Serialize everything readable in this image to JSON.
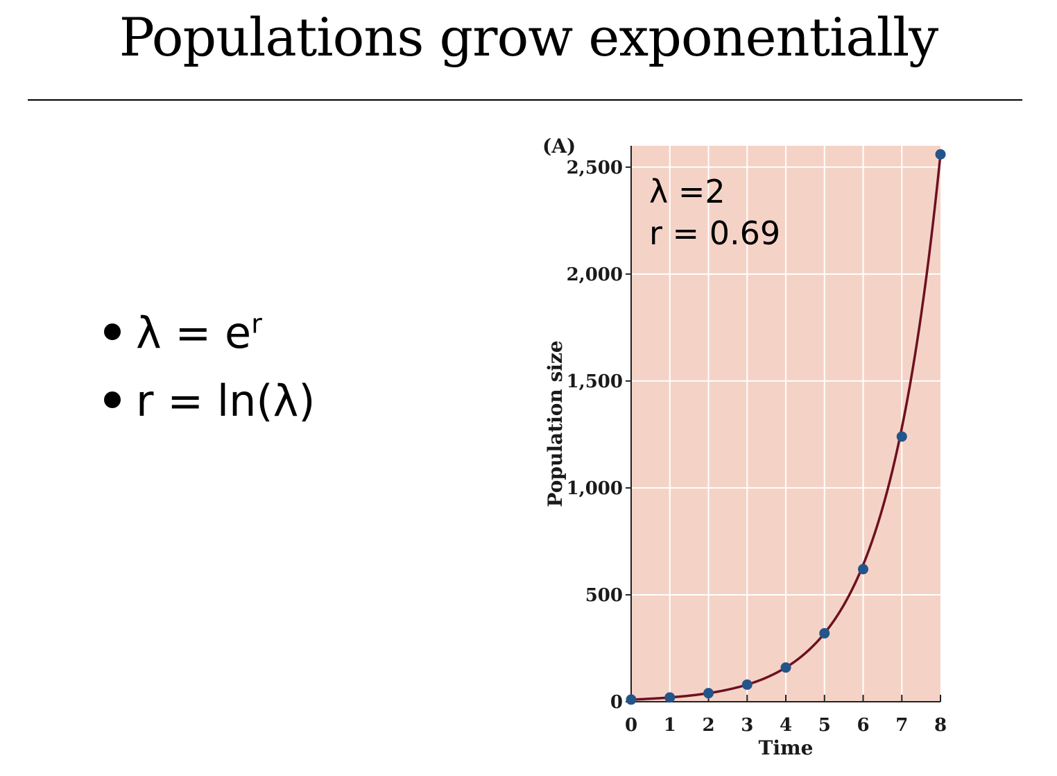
{
  "slide": {
    "title": "Populations grow exponentially",
    "bullets": [
      {
        "text": "λ = e",
        "sup": "r"
      },
      {
        "text": "r = ln(λ)",
        "sup": ""
      }
    ]
  },
  "chart_data": {
    "type": "scatter",
    "panel_label": "(A)",
    "xlabel": "Time",
    "ylabel": "Population size",
    "x": [
      0,
      1,
      2,
      3,
      4,
      5,
      6,
      7,
      8
    ],
    "y": [
      10,
      20,
      40,
      80,
      160,
      320,
      620,
      1240,
      2560
    ],
    "xlim": [
      0,
      8
    ],
    "ylim": [
      0,
      2600
    ],
    "xticks": [
      "0",
      "1",
      "2",
      "3",
      "4",
      "5",
      "6",
      "7",
      "8"
    ],
    "yticks": [
      {
        "value": 0,
        "label": "0"
      },
      {
        "value": 500,
        "label": "500"
      },
      {
        "value": 1000,
        "label": "1,000"
      },
      {
        "value": 1500,
        "label": "1,500"
      },
      {
        "value": 2000,
        "label": "2,000"
      },
      {
        "value": 2500,
        "label": "2,500"
      }
    ],
    "annotations": [
      "λ =2",
      "r = 0.69"
    ],
    "grid": true,
    "fit_curve": "exponential",
    "colors": {
      "background": "#f4d3c6",
      "curve": "#6e1020",
      "points": "#23548a",
      "grid": "#ffffff"
    }
  }
}
